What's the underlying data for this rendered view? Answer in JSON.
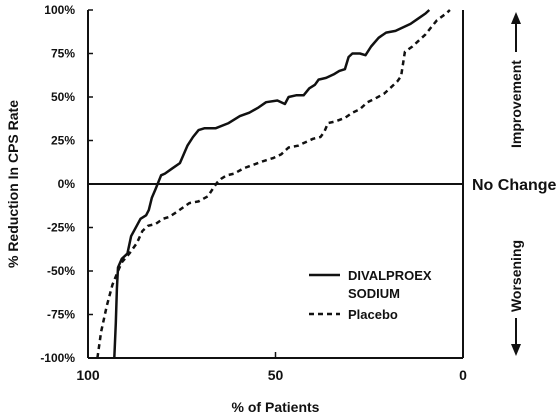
{
  "chart_data": {
    "type": "line",
    "xlabel": "% of Patients",
    "ylabel": "% Reduction In CPS Rate",
    "xlim": [
      100,
      0
    ],
    "ylim": [
      -100,
      100
    ],
    "x_ticks": [
      100,
      50,
      0
    ],
    "x_tick_labels": [
      "100",
      "50",
      "0"
    ],
    "y_ticks": [
      100,
      75,
      50,
      25,
      0,
      -25,
      -50,
      -75,
      -100
    ],
    "y_tick_labels": [
      "100%",
      "75%",
      "50%",
      "25%",
      "0%",
      "-25%",
      "-50%",
      "-75%",
      "-100%"
    ],
    "grid": false,
    "legend_position": "bottom-right",
    "reference_line": {
      "y": 0,
      "label": "No Change"
    },
    "side_labels": {
      "top": "Improvement",
      "bottom": "Worsening"
    },
    "series": [
      {
        "name": "DIVALPROEX\nSODIUM",
        "style": "solid",
        "color": "#111111",
        "points": [
          [
            93.0,
            -100
          ],
          [
            92.6,
            -80
          ],
          [
            92.3,
            -60
          ],
          [
            92.0,
            -48
          ],
          [
            91.0,
            -43
          ],
          [
            89.5,
            -40
          ],
          [
            88.5,
            -30
          ],
          [
            87.5,
            -26
          ],
          [
            86.0,
            -20
          ],
          [
            84.5,
            -18
          ],
          [
            83.8,
            -15
          ],
          [
            83.0,
            -8
          ],
          [
            82.0,
            -3
          ],
          [
            80.5,
            5
          ],
          [
            79.5,
            6
          ],
          [
            77.5,
            9
          ],
          [
            75.5,
            12
          ],
          [
            73.5,
            22
          ],
          [
            72.0,
            27
          ],
          [
            70.5,
            31
          ],
          [
            69.0,
            32
          ],
          [
            66.0,
            32
          ],
          [
            62.5,
            35
          ],
          [
            59.5,
            39
          ],
          [
            57.0,
            41
          ],
          [
            54.5,
            44
          ],
          [
            52.5,
            47
          ],
          [
            49.5,
            48
          ],
          [
            47.5,
            46
          ],
          [
            46.5,
            50
          ],
          [
            44.5,
            51
          ],
          [
            42.5,
            51
          ],
          [
            41.0,
            55
          ],
          [
            39.5,
            57
          ],
          [
            38.5,
            60
          ],
          [
            36.5,
            61
          ],
          [
            34.5,
            63
          ],
          [
            33.0,
            65
          ],
          [
            31.5,
            66
          ],
          [
            30.5,
            73
          ],
          [
            29.5,
            75
          ],
          [
            27.5,
            75
          ],
          [
            26.0,
            74
          ],
          [
            24.5,
            79
          ],
          [
            22.5,
            84
          ],
          [
            20.5,
            87
          ],
          [
            18.0,
            88
          ],
          [
            14.0,
            92
          ],
          [
            12.0,
            95
          ],
          [
            10.0,
            98
          ],
          [
            9.0,
            100
          ]
        ]
      },
      {
        "name": "Placebo",
        "style": "dashed",
        "color": "#111111",
        "points": [
          [
            97.5,
            -100
          ],
          [
            96.5,
            -85
          ],
          [
            95.0,
            -70
          ],
          [
            93.5,
            -58
          ],
          [
            92.0,
            -50
          ],
          [
            91.0,
            -45
          ],
          [
            89.0,
            -40
          ],
          [
            87.0,
            -34
          ],
          [
            85.5,
            -27
          ],
          [
            84.0,
            -24
          ],
          [
            82.0,
            -23
          ],
          [
            80.0,
            -20
          ],
          [
            78.5,
            -19
          ],
          [
            77.0,
            -17
          ],
          [
            75.0,
            -14
          ],
          [
            73.0,
            -11
          ],
          [
            70.5,
            -10
          ],
          [
            68.0,
            -7
          ],
          [
            66.5,
            -2
          ],
          [
            65.5,
            1
          ],
          [
            64.5,
            3
          ],
          [
            63.0,
            5
          ],
          [
            61.0,
            6
          ],
          [
            58.5,
            9
          ],
          [
            56.0,
            11
          ],
          [
            53.5,
            13
          ],
          [
            50.5,
            15
          ],
          [
            48.5,
            17
          ],
          [
            46.5,
            21
          ],
          [
            44.0,
            22
          ],
          [
            42.0,
            24
          ],
          [
            40.0,
            26
          ],
          [
            38.0,
            27
          ],
          [
            37.0,
            30
          ],
          [
            36.0,
            35
          ],
          [
            34.0,
            36
          ],
          [
            31.5,
            38
          ],
          [
            29.5,
            41
          ],
          [
            27.5,
            43
          ],
          [
            25.5,
            47
          ],
          [
            23.5,
            49
          ],
          [
            21.0,
            52
          ],
          [
            19.0,
            56
          ],
          [
            17.5,
            59
          ],
          [
            16.5,
            62
          ],
          [
            15.5,
            76
          ],
          [
            13.5,
            79
          ],
          [
            12.0,
            82
          ],
          [
            10.0,
            86
          ],
          [
            8.5,
            90
          ],
          [
            7.0,
            94
          ],
          [
            4.5,
            98
          ],
          [
            3.5,
            100
          ]
        ]
      }
    ]
  }
}
